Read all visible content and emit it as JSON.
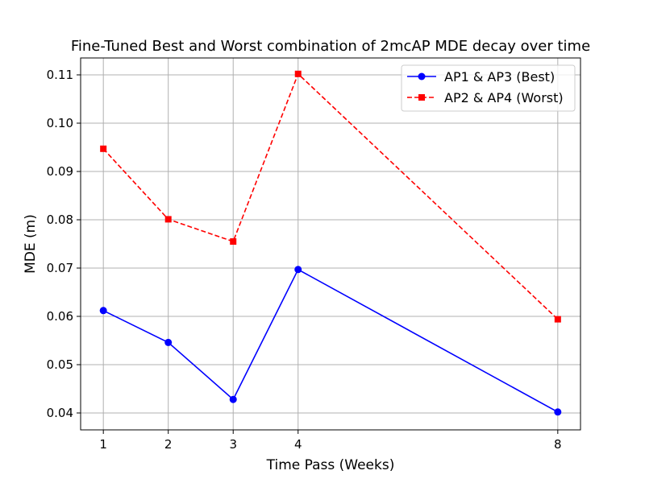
{
  "chart_data": {
    "type": "line",
    "title": "Fine-Tuned Best and Worst combination of 2mcAP MDE decay over time",
    "xlabel": "Time Pass (Weeks)",
    "ylabel": "MDE (m)",
    "x": [
      1,
      2,
      3,
      4,
      8
    ],
    "xticks": [
      "1",
      "2",
      "3",
      "4",
      "8"
    ],
    "xlim": [
      0.65,
      8.35
    ],
    "ylim": [
      0.0365,
      0.1135
    ],
    "yticks": [
      0.04,
      0.05,
      0.06,
      0.07,
      0.08,
      0.09,
      0.1,
      0.11
    ],
    "ytick_labels": [
      "0.04",
      "0.05",
      "0.06",
      "0.07",
      "0.08",
      "0.09",
      "0.10",
      "0.11"
    ],
    "grid": true,
    "legend_position": "top-right",
    "series": [
      {
        "name": "AP1 & AP3 (Best)",
        "values": [
          0.0612,
          0.0546,
          0.0428,
          0.0697,
          0.0402
        ],
        "color": "#0000ff",
        "marker": "circle",
        "linestyle": "solid"
      },
      {
        "name": "AP2 & AP4 (Worst)",
        "values": [
          0.0947,
          0.0801,
          0.0755,
          0.1102,
          0.0594
        ],
        "color": "#ff0000",
        "marker": "square",
        "linestyle": "dashed"
      }
    ]
  }
}
